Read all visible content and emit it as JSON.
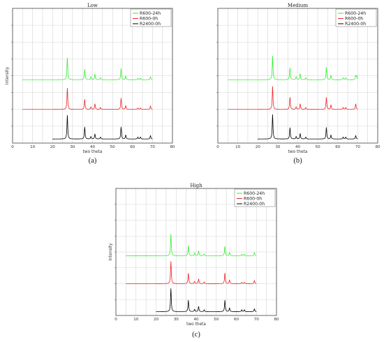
{
  "chart_data": [
    {
      "type": "line",
      "title": "Low",
      "caption": "(a)",
      "xlabel": "two theta",
      "ylabel": "Intensity",
      "xlim": [
        0,
        80
      ],
      "xticks": [
        0,
        10,
        20,
        30,
        40,
        50,
        60,
        70,
        80
      ],
      "grid": true,
      "legend_position": "top-right",
      "series": [
        {
          "name": "R600-24h",
          "color": "#33ee33",
          "x_start": 5,
          "x_end": 70,
          "peaks": [
            [
              27.4,
              0.88
            ],
            [
              36.1,
              0.42
            ],
            [
              39.2,
              0.12
            ],
            [
              41.2,
              0.22
            ],
            [
              44.0,
              0.08
            ],
            [
              54.3,
              0.45
            ],
            [
              56.6,
              0.15
            ],
            [
              62.7,
              0.06
            ],
            [
              64.0,
              0.06
            ],
            [
              69.0,
              0.12
            ]
          ]
        },
        {
          "name": "R600-0h",
          "color": "#ee2222",
          "x_start": 5,
          "x_end": 70,
          "peaks": [
            [
              27.4,
              0.85
            ],
            [
              36.1,
              0.4
            ],
            [
              39.2,
              0.1
            ],
            [
              41.2,
              0.22
            ],
            [
              44.0,
              0.08
            ],
            [
              54.3,
              0.45
            ],
            [
              56.6,
              0.15
            ],
            [
              62.7,
              0.06
            ],
            [
              64.0,
              0.06
            ],
            [
              69.0,
              0.14
            ]
          ]
        },
        {
          "name": "R2400-0h",
          "color": "#000000",
          "x_start": 20,
          "x_end": 70,
          "peaks": [
            [
              27.4,
              0.95
            ],
            [
              36.1,
              0.48
            ],
            [
              39.2,
              0.1
            ],
            [
              41.2,
              0.2
            ],
            [
              44.0,
              0.08
            ],
            [
              54.3,
              0.48
            ],
            [
              56.6,
              0.16
            ],
            [
              62.7,
              0.08
            ],
            [
              64.0,
              0.08
            ],
            [
              69.0,
              0.14
            ]
          ]
        }
      ]
    },
    {
      "type": "line",
      "title": "Medium",
      "caption": "(b)",
      "xlabel": "two theta",
      "ylabel": "",
      "xlim": [
        0,
        80
      ],
      "xticks": [
        0,
        10,
        20,
        30,
        40,
        50,
        60,
        70,
        80
      ],
      "grid": true,
      "legend_position": "top-right",
      "series": [
        {
          "name": "R600-24h",
          "color": "#33ee33",
          "x_start": 5,
          "x_end": 70,
          "peaks": [
            [
              27.4,
              0.95
            ],
            [
              36.1,
              0.48
            ],
            [
              39.2,
              0.12
            ],
            [
              41.2,
              0.24
            ],
            [
              44.0,
              0.08
            ],
            [
              54.3,
              0.5
            ],
            [
              56.6,
              0.18
            ],
            [
              62.7,
              0.08
            ],
            [
              64.0,
              0.08
            ],
            [
              69.0,
              0.16
            ],
            [
              69.5,
              0.14
            ]
          ]
        },
        {
          "name": "R600-0h",
          "color": "#ee2222",
          "x_start": 5,
          "x_end": 70,
          "peaks": [
            [
              27.4,
              0.92
            ],
            [
              36.1,
              0.48
            ],
            [
              39.2,
              0.1
            ],
            [
              41.2,
              0.22
            ],
            [
              44.0,
              0.08
            ],
            [
              54.3,
              0.48
            ],
            [
              56.6,
              0.18
            ],
            [
              62.7,
              0.08
            ],
            [
              64.0,
              0.08
            ],
            [
              69.0,
              0.22
            ]
          ]
        },
        {
          "name": "R2400-0h",
          "color": "#000000",
          "x_start": 20,
          "x_end": 70,
          "peaks": [
            [
              27.4,
              0.98
            ],
            [
              36.1,
              0.45
            ],
            [
              39.2,
              0.1
            ],
            [
              41.2,
              0.22
            ],
            [
              44.0,
              0.08
            ],
            [
              54.3,
              0.46
            ],
            [
              56.6,
              0.16
            ],
            [
              62.7,
              0.08
            ],
            [
              64.0,
              0.08
            ],
            [
              69.0,
              0.14
            ]
          ]
        }
      ]
    },
    {
      "type": "line",
      "title": "High",
      "caption": "(c)",
      "xlabel": "two theta",
      "ylabel": "Intensity",
      "xlim": [
        0,
        80
      ],
      "xticks": [
        0,
        10,
        20,
        30,
        40,
        50,
        60,
        70,
        80
      ],
      "grid": true,
      "legend_position": "top-right",
      "series": [
        {
          "name": "R600-24h",
          "color": "#33ee33",
          "x_start": 5,
          "x_end": 70,
          "peaks": [
            [
              27.4,
              0.92
            ],
            [
              36.1,
              0.42
            ],
            [
              39.2,
              0.12
            ],
            [
              41.2,
              0.2
            ],
            [
              44.0,
              0.08
            ],
            [
              54.3,
              0.4
            ],
            [
              56.6,
              0.14
            ],
            [
              62.7,
              0.06
            ],
            [
              64.0,
              0.06
            ],
            [
              69.0,
              0.14
            ]
          ]
        },
        {
          "name": "R600-0h",
          "color": "#ee2222",
          "x_start": 5,
          "x_end": 70,
          "peaks": [
            [
              27.4,
              0.95
            ],
            [
              36.1,
              0.44
            ],
            [
              39.2,
              0.1
            ],
            [
              41.2,
              0.2
            ],
            [
              44.0,
              0.08
            ],
            [
              54.3,
              0.45
            ],
            [
              56.6,
              0.16
            ],
            [
              62.7,
              0.06
            ],
            [
              64.0,
              0.06
            ],
            [
              69.0,
              0.14
            ]
          ]
        },
        {
          "name": "R2400-0h",
          "color": "#000000",
          "x_start": 20,
          "x_end": 70,
          "peaks": [
            [
              27.4,
              0.98
            ],
            [
              36.1,
              0.48
            ],
            [
              39.2,
              0.1
            ],
            [
              41.2,
              0.22
            ],
            [
              44.0,
              0.08
            ],
            [
              54.3,
              0.48
            ],
            [
              56.6,
              0.16
            ],
            [
              62.7,
              0.08
            ],
            [
              64.0,
              0.08
            ],
            [
              69.0,
              0.12
            ]
          ]
        }
      ]
    }
  ]
}
